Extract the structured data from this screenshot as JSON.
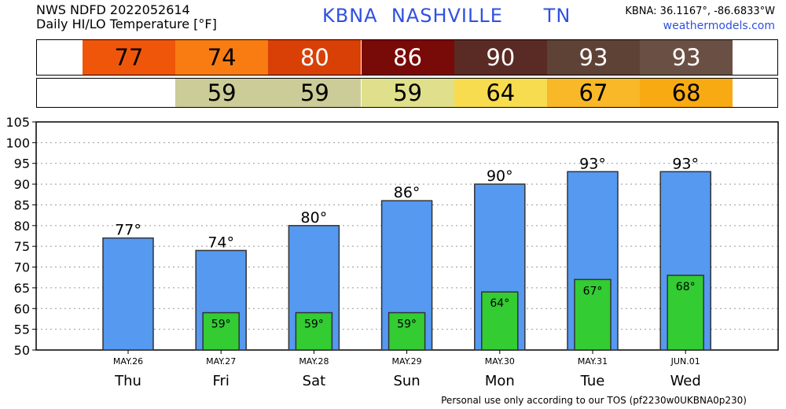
{
  "header": {
    "line1": "NWS NDFD 2022052614",
    "line2": "Daily HI/LO Temperature [°F]",
    "title": "KBNA  NASHVILLE      TN",
    "coords": "KBNA: 36.1167°, -86.6833°W",
    "site": "weathermodels.com"
  },
  "footer": "Personal use only according to our TOS (pf2230w0UKBNA0p230)",
  "strips": {
    "hi": [
      {
        "text": "77",
        "color": "#f0560a",
        "text_color": "#000000"
      },
      {
        "text": "74",
        "color": "#f87c12",
        "text_color": "#000000"
      },
      {
        "text": "80",
        "color": "#d84006",
        "text_color": "#ffffff"
      },
      {
        "text": "86",
        "color": "#780a08",
        "text_color": "#ffffff"
      },
      {
        "text": "90",
        "color": "#5a2a24",
        "text_color": "#ffffff"
      },
      {
        "text": "93",
        "color": "#5e4236",
        "text_color": "#ffffff"
      },
      {
        "text": "93",
        "color": "#6a5044",
        "text_color": "#ffffff"
      }
    ],
    "lo": [
      {
        "text": "59",
        "color": "#cccc98",
        "text_color": "#000000"
      },
      {
        "text": "59",
        "color": "#cccc98",
        "text_color": "#000000"
      },
      {
        "text": "59",
        "color": "#e0e08c",
        "text_color": "#000000"
      },
      {
        "text": "64",
        "color": "#f8dc50",
        "text_color": "#000000"
      },
      {
        "text": "67",
        "color": "#f8b828",
        "text_color": "#000000"
      },
      {
        "text": "68",
        "color": "#f8aa12",
        "text_color": "#000000"
      }
    ]
  },
  "chart_data": {
    "type": "bar",
    "categories": [
      "Thu",
      "Fri",
      "Sat",
      "Sun",
      "Mon",
      "Tue",
      "Wed"
    ],
    "dates": [
      "MAY.26",
      "MAY.27",
      "MAY.28",
      "MAY.29",
      "MAY.30",
      "MAY.31",
      "JUN.01"
    ],
    "series": [
      {
        "values": [
          77,
          74,
          80,
          86,
          90,
          93,
          93
        ],
        "labels": [
          "77°",
          "74°",
          "80°",
          "86°",
          "90°",
          "93°",
          "93°"
        ],
        "color": "#5599f0"
      },
      {
        "values": [
          null,
          59,
          59,
          59,
          64,
          67,
          68
        ],
        "labels": [
          "",
          "59°",
          "59°",
          "59°",
          "64°",
          "67°",
          "68°"
        ],
        "color": "#33cc33"
      }
    ],
    "ylim": [
      50,
      105
    ],
    "yticks": [
      "50",
      "55",
      "60",
      "65",
      "70",
      "75",
      "80",
      "85",
      "90",
      "95",
      "100",
      "105"
    ],
    "grid": true
  }
}
